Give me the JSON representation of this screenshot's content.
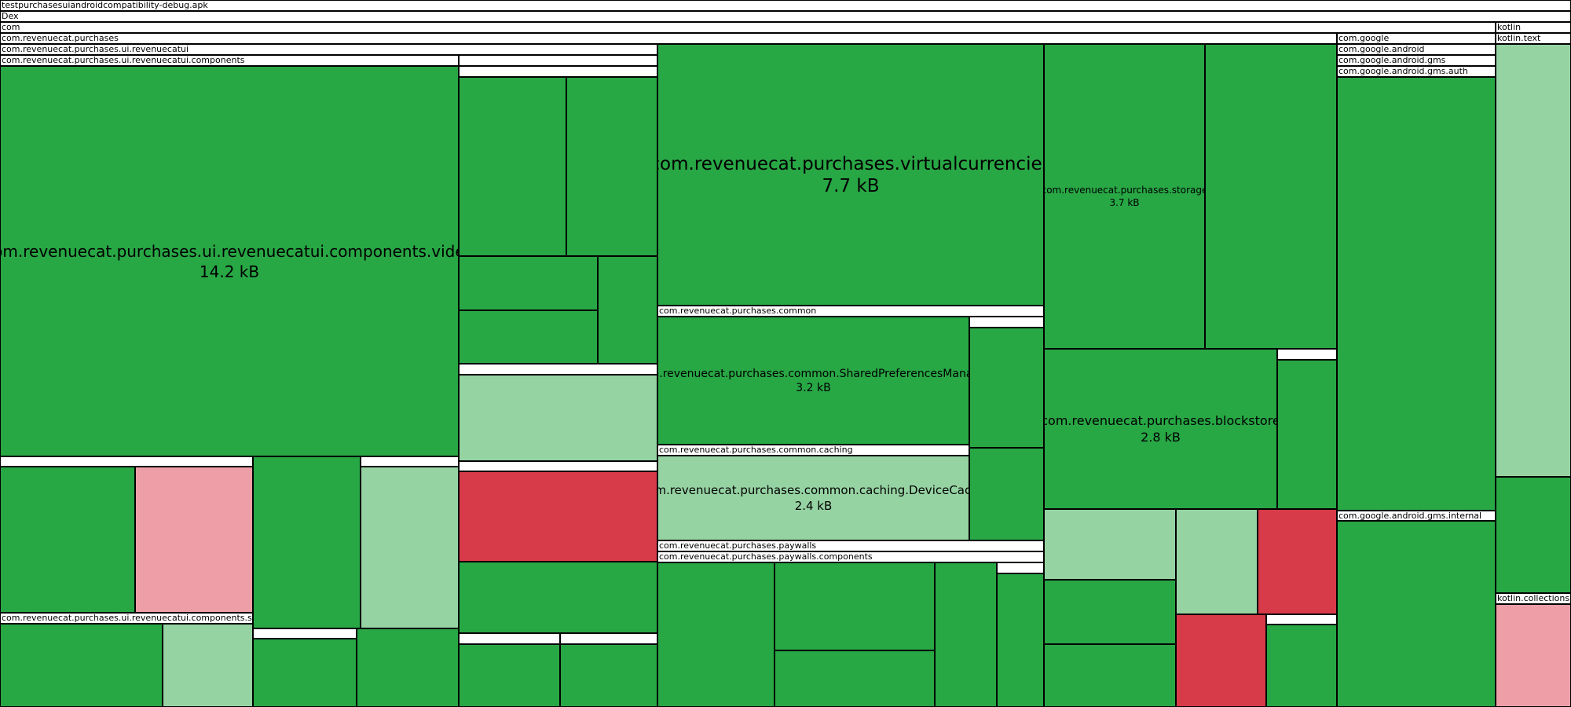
{
  "chart_data": {
    "type": "treemap",
    "root": "testpurchasesuiandroidcompatibility-debug.apk",
    "colors": {
      "unchanged": "#28a745",
      "slightly_increased": "#96d3a3",
      "slightly_decreased": "#ed9ea7",
      "decreased": "#d73a49",
      "header": "#ffffff"
    },
    "headers": [
      {
        "id": "apk",
        "label": "testpurchasesuiandroidcompatibility-debug.apk"
      },
      {
        "id": "dex",
        "label": "Dex"
      },
      {
        "id": "com",
        "label": "com"
      },
      {
        "id": "kotlin",
        "label": "kotlin"
      },
      {
        "id": "purchases",
        "label": "com.revenuecat.purchases"
      },
      {
        "id": "google",
        "label": "com.google"
      },
      {
        "id": "kotlin-text",
        "label": "kotlin.text"
      },
      {
        "id": "ui-revenuecatui",
        "label": "com.revenuecat.purchases.ui.revenuecatui"
      },
      {
        "id": "google-android",
        "label": "com.google.android"
      },
      {
        "id": "ui-components",
        "label": "com.revenuecat.purchases.ui.revenuecatui.components"
      },
      {
        "id": "google-gms",
        "label": "com.google.android.gms"
      },
      {
        "id": "google-gms-auth",
        "label": "com.google.android.gms.auth"
      },
      {
        "id": "common",
        "label": "com.revenuecat.purchases.common"
      },
      {
        "id": "common-caching",
        "label": "com.revenuecat.purchases.common.caching"
      },
      {
        "id": "gms-internal",
        "label": "com.google.android.gms.internal"
      },
      {
        "id": "paywalls",
        "label": "com.revenuecat.purchases.paywalls"
      },
      {
        "id": "paywalls-components",
        "label": "com.revenuecat.purchases.paywalls.components"
      },
      {
        "id": "kotlin-collections",
        "label": "kotlin.collections"
      },
      {
        "id": "components-style",
        "label": "com.revenuecat.purchases.ui.revenuecatui.components.style"
      },
      {
        "id": "h-a",
        "label": ""
      },
      {
        "id": "h-b",
        "label": ""
      },
      {
        "id": "h-c",
        "label": ""
      },
      {
        "id": "h-d",
        "label": ""
      },
      {
        "id": "h-e",
        "label": ""
      },
      {
        "id": "h-f",
        "label": ""
      },
      {
        "id": "h-g",
        "label": ""
      },
      {
        "id": "h-h",
        "label": ""
      },
      {
        "id": "h-i",
        "label": ""
      },
      {
        "id": "h-j",
        "label": ""
      },
      {
        "id": "h-k",
        "label": ""
      },
      {
        "id": "h-l",
        "label": ""
      },
      {
        "id": "h-m",
        "label": ""
      },
      {
        "id": "h-n",
        "label": ""
      }
    ],
    "blocks": [
      {
        "id": "video",
        "name": "com.revenuecat.purchases.ui.revenuecatui.components.video",
        "size": "14.2 kB",
        "change": "unchanged"
      },
      {
        "id": "virtualcurrencies",
        "name": "com.revenuecat.purchases.virtualcurrencies",
        "size": "7.7 kB",
        "change": "unchanged"
      },
      {
        "id": "storage",
        "name": "com.revenuecat.purchases.storage",
        "size": "3.7 kB",
        "change": "unchanged"
      },
      {
        "id": "sharedprefs",
        "name": "com.revenuecat.purchases.common.SharedPreferencesManager",
        "size": "3.2 kB",
        "change": "unchanged"
      },
      {
        "id": "blockstore",
        "name": "com.revenuecat.purchases.blockstore",
        "size": "2.8 kB",
        "change": "unchanged"
      },
      {
        "id": "devicecache",
        "name": "com.revenuecat.purchases.common.caching.DeviceCache",
        "size": "2.4 kB",
        "change": "slightly_increased"
      },
      {
        "id": "b01",
        "name": "",
        "size": "",
        "change": "unchanged"
      },
      {
        "id": "b02",
        "name": "",
        "size": "",
        "change": "slightly_decreased"
      },
      {
        "id": "b03",
        "name": "",
        "size": "",
        "change": "unchanged"
      },
      {
        "id": "b04",
        "name": "",
        "size": "",
        "change": "slightly_increased"
      },
      {
        "id": "b05",
        "name": "",
        "size": "",
        "change": "unchanged"
      },
      {
        "id": "b06",
        "name": "",
        "size": "",
        "change": "slightly_increased"
      },
      {
        "id": "b07",
        "name": "",
        "size": "",
        "change": "unchanged"
      },
      {
        "id": "b08",
        "name": "",
        "size": "",
        "change": "unchanged"
      },
      {
        "id": "b09",
        "name": "",
        "size": "",
        "change": "unchanged"
      },
      {
        "id": "b10",
        "name": "",
        "size": "",
        "change": "unchanged"
      },
      {
        "id": "b11",
        "name": "",
        "size": "",
        "change": "unchanged"
      },
      {
        "id": "b12",
        "name": "",
        "size": "",
        "change": "unchanged"
      },
      {
        "id": "b13",
        "name": "",
        "size": "",
        "change": "slightly_increased"
      },
      {
        "id": "b14",
        "name": "",
        "size": "",
        "change": "decreased"
      },
      {
        "id": "b15",
        "name": "",
        "size": "",
        "change": "unchanged"
      },
      {
        "id": "b16",
        "name": "",
        "size": "",
        "change": "slightly_increased"
      },
      {
        "id": "b17",
        "name": "",
        "size": "",
        "change": "unchanged"
      },
      {
        "id": "b18",
        "name": "",
        "size": "",
        "change": "unchanged"
      },
      {
        "id": "b19",
        "name": "",
        "size": "",
        "change": "unchanged"
      },
      {
        "id": "b20",
        "name": "",
        "size": "",
        "change": "unchanged"
      },
      {
        "id": "b21",
        "name": "",
        "size": "",
        "change": "unchanged"
      },
      {
        "id": "b22",
        "name": "",
        "size": "",
        "change": "unchanged"
      },
      {
        "id": "b23",
        "name": "",
        "size": "",
        "change": "unchanged"
      },
      {
        "id": "b24",
        "name": "",
        "size": "",
        "change": "unchanged"
      },
      {
        "id": "b25",
        "name": "",
        "size": "",
        "change": "unchanged"
      },
      {
        "id": "b26",
        "name": "",
        "size": "",
        "change": "unchanged"
      },
      {
        "id": "b27",
        "name": "",
        "size": "",
        "change": "unchanged"
      },
      {
        "id": "b28",
        "name": "",
        "size": "",
        "change": "unchanged"
      },
      {
        "id": "b29",
        "name": "",
        "size": "",
        "change": "slightly_increased"
      },
      {
        "id": "b30",
        "name": "",
        "size": "",
        "change": "slightly_increased"
      },
      {
        "id": "b31",
        "name": "",
        "size": "",
        "change": "decreased"
      },
      {
        "id": "b32",
        "name": "",
        "size": "",
        "change": "unchanged"
      },
      {
        "id": "b33",
        "name": "",
        "size": "",
        "change": "decreased"
      },
      {
        "id": "b34",
        "name": "",
        "size": "",
        "change": "unchanged"
      },
      {
        "id": "b35",
        "name": "",
        "size": "",
        "change": "unchanged"
      },
      {
        "id": "b36",
        "name": "",
        "size": "",
        "change": "unchanged"
      },
      {
        "id": "b37",
        "name": "",
        "size": "",
        "change": "unchanged"
      },
      {
        "id": "b38",
        "name": "",
        "size": "",
        "change": "unchanged"
      },
      {
        "id": "b39",
        "name": "",
        "size": "",
        "change": "slightly_decreased"
      }
    ]
  }
}
